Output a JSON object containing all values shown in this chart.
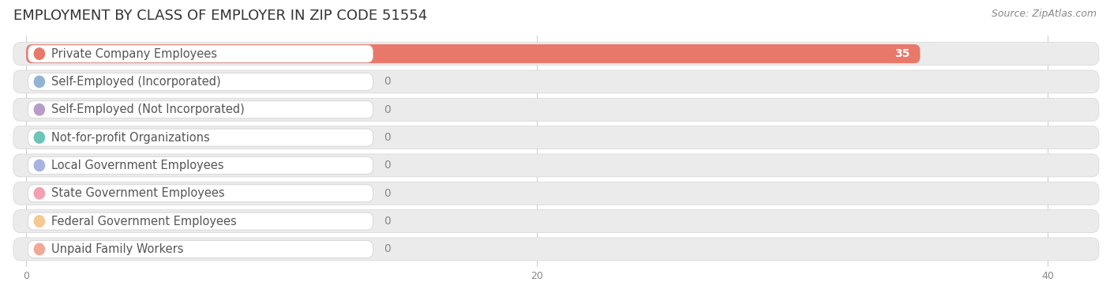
{
  "title": "EMPLOYMENT BY CLASS OF EMPLOYER IN ZIP CODE 51554",
  "source": "Source: ZipAtlas.com",
  "categories": [
    "Private Company Employees",
    "Self-Employed (Incorporated)",
    "Self-Employed (Not Incorporated)",
    "Not-for-profit Organizations",
    "Local Government Employees",
    "State Government Employees",
    "Federal Government Employees",
    "Unpaid Family Workers"
  ],
  "values": [
    35,
    0,
    0,
    0,
    0,
    0,
    0,
    0
  ],
  "bar_colors": [
    "#E8796A",
    "#92B4D4",
    "#B89DC8",
    "#6DC4B8",
    "#A8B4E0",
    "#F4A0B0",
    "#F5C894",
    "#F0A898"
  ],
  "xlim": [
    0,
    42
  ],
  "xticks": [
    0,
    20,
    40
  ],
  "title_fontsize": 13,
  "source_fontsize": 9,
  "label_fontsize": 10.5,
  "value_fontsize": 10,
  "bar_height": 0.68
}
